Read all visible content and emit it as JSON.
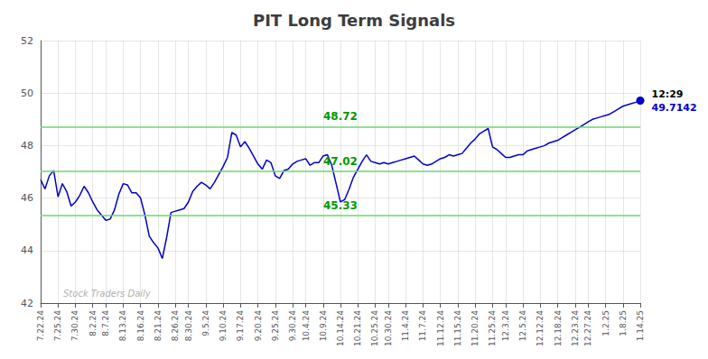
{
  "chart_data": {
    "type": "line",
    "title": "PIT Long Term Signals",
    "categories": [
      "7.22.24",
      null,
      null,
      null,
      "7.25.24",
      null,
      null,
      null,
      "7.30.24",
      null,
      null,
      null,
      "8.2.24",
      null,
      null,
      "8.7.24",
      null,
      null,
      null,
      "8.13.24",
      null,
      null,
      null,
      "8.16.24",
      null,
      null,
      null,
      "8.21.24",
      null,
      null,
      null,
      "8.26.24",
      null,
      null,
      "8.30.24",
      null,
      null,
      null,
      "9.5.24",
      null,
      null,
      null,
      "9.10.24",
      null,
      null,
      null,
      "9.17.24",
      null,
      null,
      null,
      "9.20.24",
      null,
      null,
      null,
      "9.25.24",
      null,
      null,
      null,
      "9.30.24",
      null,
      null,
      "10.4.24",
      null,
      null,
      null,
      "10.9.24",
      null,
      null,
      null,
      "10.14.24",
      null,
      null,
      null,
      "10.21.24",
      null,
      null,
      null,
      "10.25.24",
      null,
      null,
      "10.30.24",
      null,
      null,
      null,
      "11.4.24",
      null,
      null,
      null,
      "11.7.24",
      null,
      null,
      null,
      "11.12.24",
      null,
      null,
      null,
      "11.15.24",
      null,
      null,
      null,
      "11.20.24",
      null,
      null,
      null,
      "11.25.24",
      null,
      null,
      "12.3.24",
      null,
      null,
      null,
      "12.5.24",
      null,
      null,
      null,
      "12.12.24",
      null,
      null,
      null,
      "12.18.24",
      null,
      null,
      null,
      "12.23.24",
      null,
      null,
      "12.27.24",
      null,
      null,
      null,
      "1.2.25",
      null,
      null,
      null,
      "1.8.25",
      null,
      null,
      null,
      "1.14.25"
    ],
    "values": [
      46.7,
      46.35,
      46.85,
      47.05,
      46.05,
      46.55,
      46.25,
      45.7,
      45.85,
      46.1,
      46.45,
      46.2,
      45.85,
      45.55,
      45.35,
      45.15,
      45.2,
      45.55,
      46.15,
      46.55,
      46.5,
      46.2,
      46.2,
      46.0,
      45.35,
      44.55,
      44.3,
      44.1,
      43.7,
      44.5,
      45.45,
      45.5,
      45.55,
      45.6,
      45.85,
      46.25,
      46.45,
      46.6,
      46.5,
      46.35,
      46.6,
      46.9,
      47.2,
      47.55,
      48.5,
      48.4,
      47.95,
      48.15,
      47.9,
      47.6,
      47.3,
      47.1,
      47.45,
      47.35,
      46.85,
      46.75,
      47.05,
      47.1,
      47.3,
      47.4,
      47.45,
      47.5,
      47.25,
      47.35,
      47.35,
      47.6,
      47.65,
      47.25,
      46.55,
      45.85,
      45.95,
      46.35,
      46.8,
      47.1,
      47.4,
      47.65,
      47.4,
      47.35,
      47.3,
      47.35,
      47.3,
      47.35,
      47.4,
      47.45,
      47.5,
      47.55,
      47.6,
      47.45,
      47.3,
      47.25,
      47.3,
      47.4,
      47.5,
      47.55,
      47.65,
      47.6,
      47.65,
      47.7,
      47.9,
      48.1,
      48.25,
      48.45,
      48.55,
      48.65,
      47.95,
      47.85,
      47.7,
      47.55,
      47.55,
      47.6,
      47.65,
      47.65,
      47.8,
      47.85,
      47.9,
      47.95,
      48.0,
      48.1,
      48.15,
      48.2,
      48.3,
      48.4,
      48.5,
      48.6,
      48.7,
      48.8,
      48.9,
      49.0,
      49.05,
      49.1,
      49.15,
      49.2,
      49.3,
      49.4,
      49.5,
      49.55,
      49.6,
      49.65,
      49.7142
    ],
    "color": "#0000cc",
    "ylim": [
      42,
      52
    ],
    "yticks": [
      42,
      44,
      46,
      48,
      50,
      52
    ],
    "grid": true,
    "grid_color": "#cccccc",
    "hlines": [
      {
        "y": 48.72,
        "label": "48.72",
        "color": "#66dd66",
        "label_color": "#009900"
      },
      {
        "y": 47.02,
        "label": "47.02",
        "color": "#66dd66",
        "label_color": "#009900"
      },
      {
        "y": 45.33,
        "label": "45.33",
        "color": "#66dd66",
        "label_color": "#009900"
      }
    ],
    "watermark": "Stock Traders Daily",
    "watermark_color": "#b0b0b0",
    "annotations": [
      {
        "text": "12:29",
        "color": "#000000"
      },
      {
        "text": "49.7142",
        "color": "#0000cc"
      }
    ]
  }
}
